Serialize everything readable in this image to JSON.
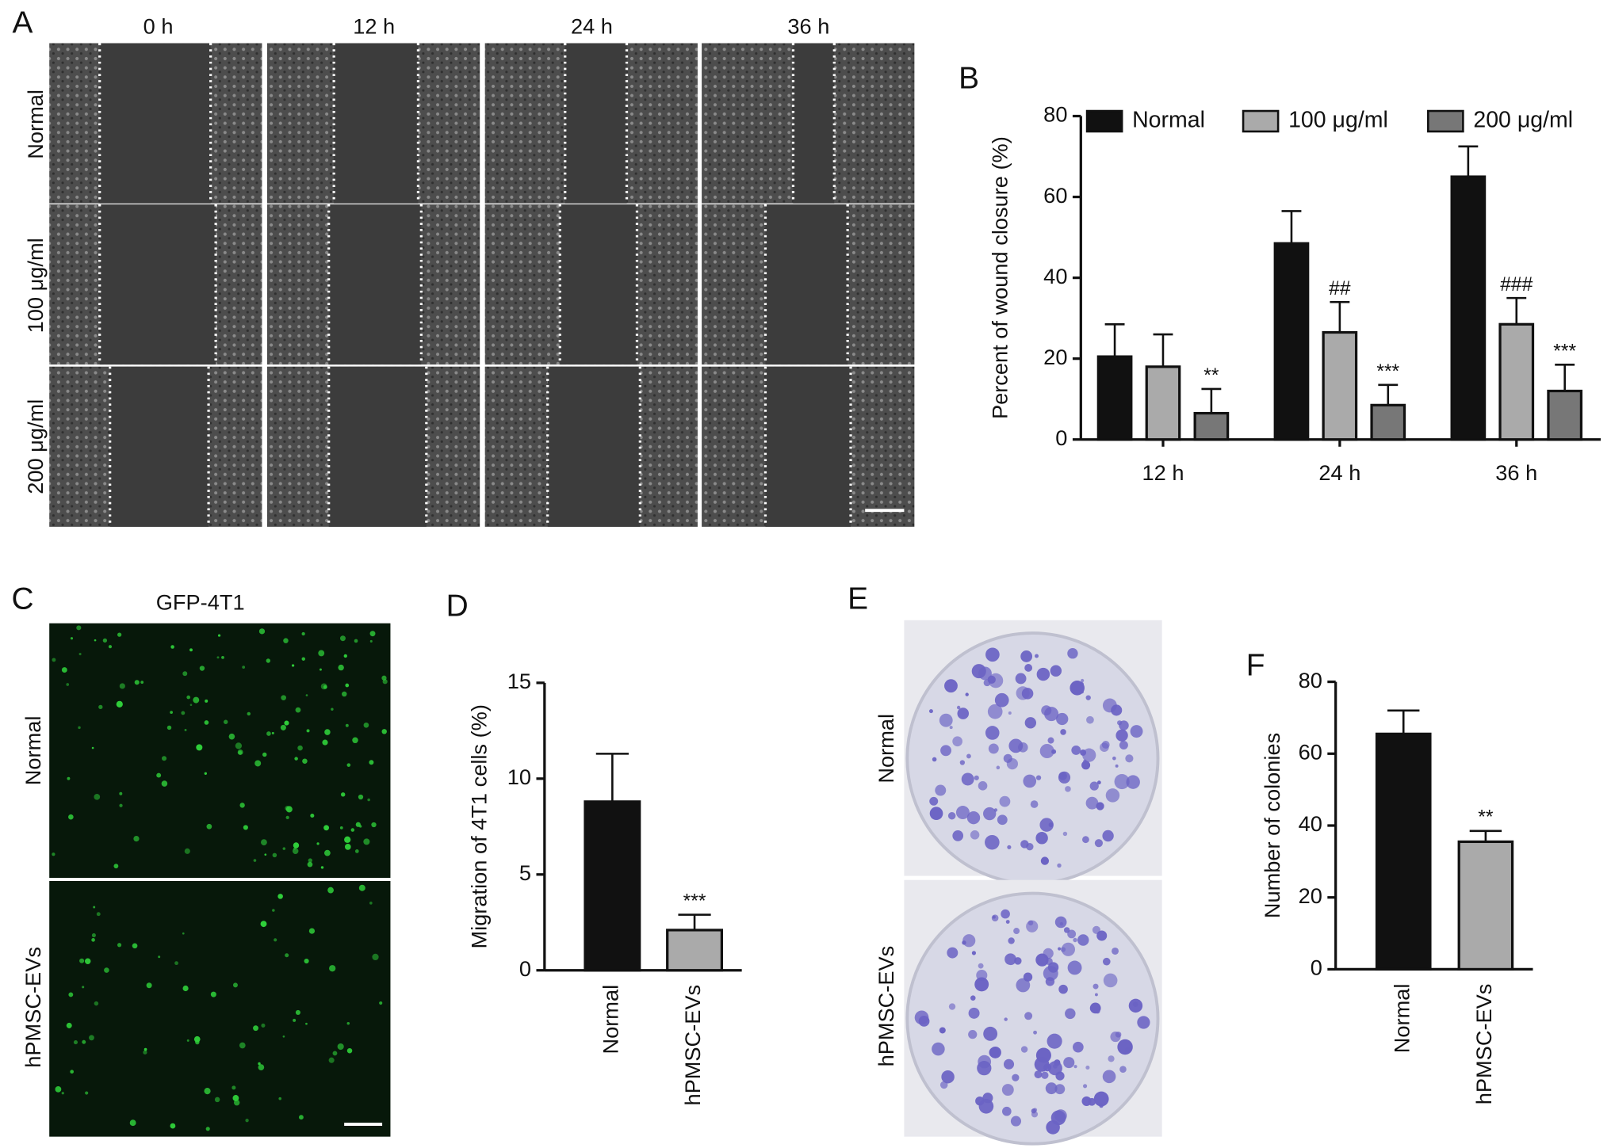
{
  "panels": {
    "A": {
      "label": "A",
      "columns": [
        "0 h",
        "12 h",
        "24 h",
        "36 h"
      ],
      "rows": [
        "Normal",
        "100 μg/ml",
        "200 μg/ml"
      ]
    },
    "C": {
      "label": "C",
      "title": "GFP-4T1",
      "rows": [
        "Normal",
        "hPMSC-EVs"
      ]
    },
    "E": {
      "label": "E",
      "rows": [
        "Normal",
        "hPMSC-EVs"
      ]
    }
  },
  "chart_data": [
    {
      "type": "bar",
      "label": "B",
      "ylabel": "Percent of wound closure (%)",
      "categories": [
        "12 h",
        "24 h",
        "36 h"
      ],
      "series": [
        {
          "name": "Normal",
          "color": "#111111",
          "values": [
            20.5,
            48.5,
            65
          ],
          "errors": [
            8,
            8,
            7.5
          ],
          "annotations": [
            null,
            null,
            null
          ]
        },
        {
          "name": "100 μg/ml",
          "color": "#aaaaaa",
          "values": [
            18,
            26.5,
            28.5
          ],
          "errors": [
            8,
            7.5,
            6.5
          ],
          "annotations": [
            null,
            "##",
            "###"
          ]
        },
        {
          "name": "200 μg/ml",
          "color": "#777777",
          "values": [
            6.5,
            8.5,
            12
          ],
          "errors": [
            6,
            5,
            6.5
          ],
          "annotations": [
            "**",
            "***",
            "***"
          ]
        }
      ],
      "ylim": [
        0,
        80
      ],
      "yticks": [
        0,
        20,
        40,
        60,
        80
      ],
      "legend": "top"
    },
    {
      "type": "bar",
      "label": "D",
      "ylabel": "Migration of 4T1 cells (%)",
      "categories": [
        "Normal",
        "hPMSC-EVs"
      ],
      "values": [
        8.8,
        2.1
      ],
      "errors": [
        2.5,
        0.8
      ],
      "colors": [
        "#111111",
        "#aaaaaa"
      ],
      "annotations": [
        null,
        "***"
      ],
      "ylim": [
        0,
        15
      ],
      "yticks": [
        0,
        5,
        10,
        15
      ]
    },
    {
      "type": "bar",
      "label": "F",
      "ylabel": "Number of colonies",
      "categories": [
        "Normal",
        "hPMSC-EVs"
      ],
      "values": [
        65.5,
        35.5
      ],
      "errors": [
        6.5,
        3
      ],
      "colors": [
        "#111111",
        "#aaaaaa"
      ],
      "annotations": [
        null,
        "**"
      ],
      "ylim": [
        0,
        80
      ],
      "yticks": [
        0,
        20,
        40,
        60,
        80
      ]
    }
  ]
}
